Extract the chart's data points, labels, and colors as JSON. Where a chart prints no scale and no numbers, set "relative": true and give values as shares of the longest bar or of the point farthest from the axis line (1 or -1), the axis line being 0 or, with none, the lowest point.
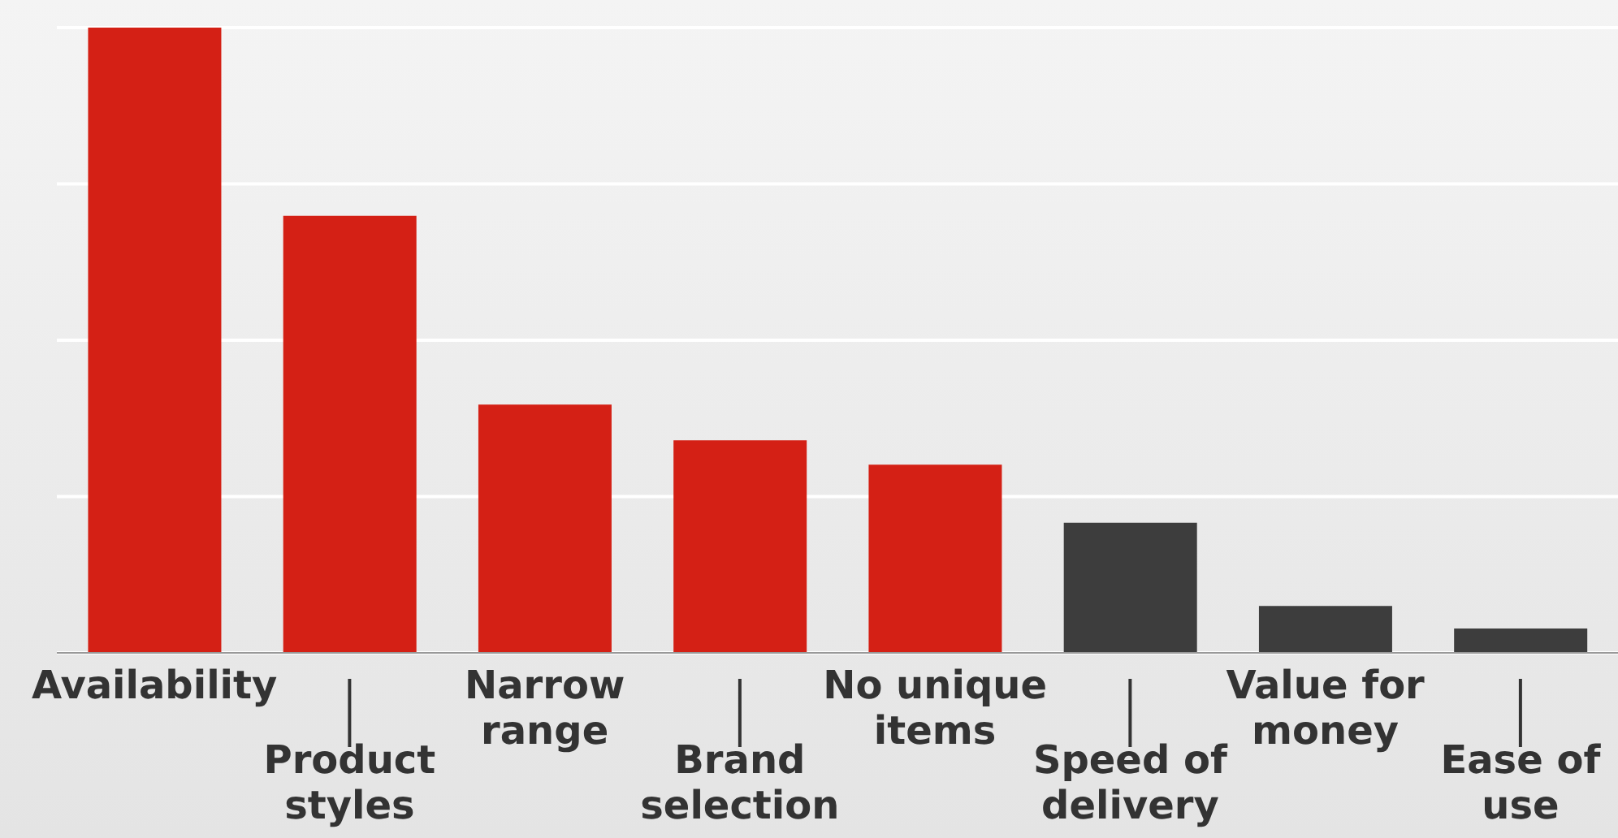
{
  "chart_data": {
    "type": "bar",
    "relative": true,
    "grid": true,
    "categories": [
      "Availability",
      "Product styles",
      "Narrow range",
      "Brand selection",
      "No unique items",
      "Speed of delivery",
      "Value for money",
      "Ease of use"
    ],
    "values": [
      1,
      0.699,
      0.397,
      0.34,
      0.301,
      0.208,
      0.075,
      0.039
    ],
    "colors": [
      "#d42015",
      "#d42015",
      "#d42015",
      "#d42015",
      "#d42015",
      "#3d3d3d",
      "#3d3d3d",
      "#3d3d3d"
    ]
  }
}
